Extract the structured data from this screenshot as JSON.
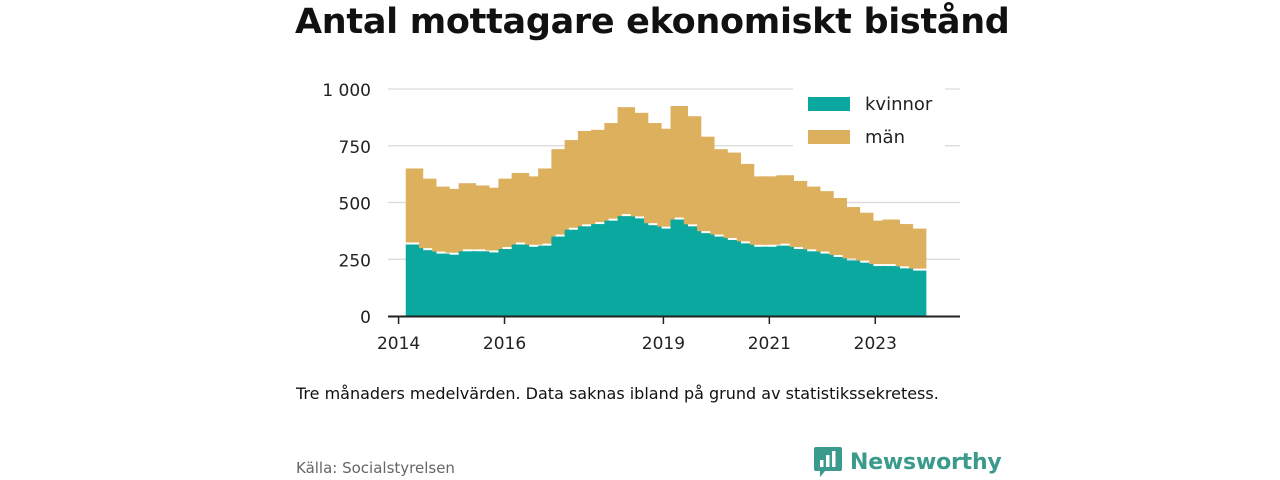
{
  "title": "Antal mottagare ekonomiskt bistånd",
  "note": "Tre månaders medelvärden. Data saknas ibland på grund av statistikssekretess.",
  "source": "Källa: Socialstyrelsen",
  "brand": {
    "name": "Newsworthy",
    "color": "#3a9a8c",
    "icon": "newsworthy-logo-icon"
  },
  "colors": {
    "kvinnor": "#0aa89e",
    "man": "#dcb05c",
    "grid": "#d9d9d9",
    "axis": "#222222"
  },
  "chart_data": {
    "type": "bar",
    "stacked": true,
    "ylim": [
      0,
      1000
    ],
    "yticks": [
      0,
      250,
      500,
      750,
      1000
    ],
    "ytick_labels": [
      "0",
      "250",
      "500",
      "750",
      "1 000"
    ],
    "xticks": [
      {
        "label": "2014",
        "x": 2014.0
      },
      {
        "label": "2016",
        "x": 2016.0
      },
      {
        "label": "2019",
        "x": 2019.0
      },
      {
        "label": "2021",
        "x": 2021.0
      },
      {
        "label": "2023",
        "x": 2023.0
      }
    ],
    "xlim": [
      2013.8,
      2024.6
    ],
    "x": [
      2014.3,
      2014.55,
      2014.8,
      2015.05,
      2015.3,
      2015.55,
      2015.8,
      2016.05,
      2016.3,
      2016.55,
      2016.8,
      2017.05,
      2017.3,
      2017.55,
      2017.8,
      2018.05,
      2018.3,
      2018.55,
      2018.8,
      2019.05,
      2019.3,
      2019.55,
      2019.8,
      2020.05,
      2020.3,
      2020.55,
      2020.8,
      2021.05,
      2021.3,
      2021.55,
      2021.8,
      2022.05,
      2022.3,
      2022.55,
      2022.8,
      2023.05,
      2023.3,
      2023.55,
      2023.8
    ],
    "legend": {
      "position": "top-right",
      "entries": [
        "kvinnor",
        "män"
      ]
    },
    "grid": true,
    "series": [
      {
        "name": "kvinnor",
        "values": [
          315,
          290,
          275,
          270,
          285,
          285,
          280,
          295,
          315,
          305,
          310,
          350,
          380,
          395,
          405,
          420,
          440,
          430,
          400,
          385,
          425,
          395,
          365,
          350,
          335,
          320,
          305,
          305,
          310,
          295,
          285,
          275,
          260,
          245,
          235,
          220,
          220,
          210,
          200
        ]
      },
      {
        "name": "män",
        "values": [
          335,
          315,
          295,
          290,
          300,
          290,
          285,
          310,
          315,
          310,
          340,
          385,
          395,
          420,
          415,
          430,
          480,
          465,
          450,
          440,
          500,
          485,
          425,
          385,
          385,
          350,
          310,
          310,
          310,
          300,
          285,
          275,
          260,
          235,
          220,
          200,
          205,
          195,
          185
        ]
      }
    ]
  }
}
